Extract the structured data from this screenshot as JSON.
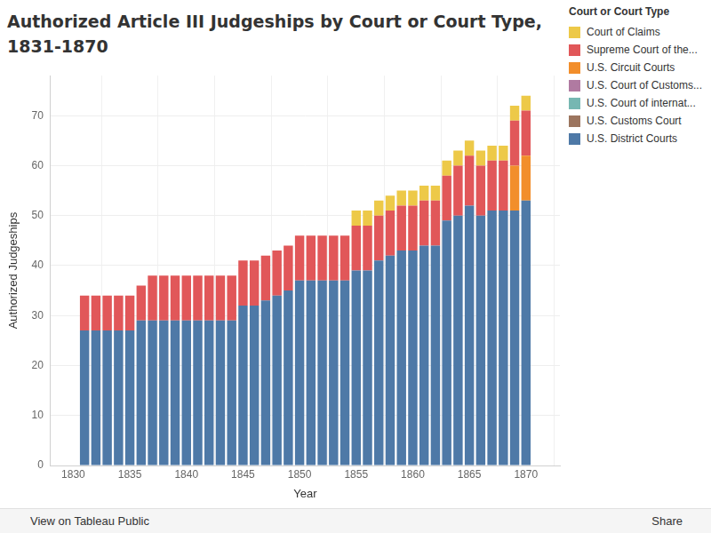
{
  "chart_data": {
    "type": "bar",
    "title": "Authorized Article III Judgeships by Court or Court Type, 1831-1870",
    "x_label": "Year",
    "y_label": "Authorized Judgeships",
    "legend_title": "Court or Court Type",
    "footer_left": "View on Tableau Public",
    "footer_right": "Share",
    "x": [
      1831,
      1832,
      1833,
      1834,
      1835,
      1836,
      1837,
      1838,
      1839,
      1840,
      1841,
      1842,
      1843,
      1844,
      1845,
      1846,
      1847,
      1848,
      1849,
      1850,
      1851,
      1852,
      1853,
      1854,
      1855,
      1856,
      1857,
      1858,
      1859,
      1860,
      1861,
      1862,
      1863,
      1864,
      1865,
      1866,
      1867,
      1868,
      1869,
      1870
    ],
    "series": [
      {
        "name": "Court of Claims",
        "color": "#edc948",
        "values": [
          0,
          0,
          0,
          0,
          0,
          0,
          0,
          0,
          0,
          0,
          0,
          0,
          0,
          0,
          0,
          0,
          0,
          0,
          0,
          0,
          0,
          0,
          0,
          0,
          3,
          3,
          3,
          3,
          3,
          3,
          3,
          3,
          3,
          3,
          3,
          3,
          3,
          3,
          3,
          3
        ]
      },
      {
        "name": "Supreme Court of the...",
        "color": "#e15759",
        "values": [
          7,
          7,
          7,
          7,
          7,
          7,
          9,
          9,
          9,
          9,
          9,
          9,
          9,
          9,
          9,
          9,
          9,
          9,
          9,
          9,
          9,
          9,
          9,
          9,
          9,
          9,
          9,
          9,
          9,
          9,
          9,
          9,
          9,
          10,
          10,
          10,
          10,
          10,
          9,
          9
        ]
      },
      {
        "name": "U.S. Circuit Courts",
        "color": "#f28e2b",
        "values": [
          0,
          0,
          0,
          0,
          0,
          0,
          0,
          0,
          0,
          0,
          0,
          0,
          0,
          0,
          0,
          0,
          0,
          0,
          0,
          0,
          0,
          0,
          0,
          0,
          0,
          0,
          0,
          0,
          0,
          0,
          0,
          0,
          0,
          0,
          0,
          0,
          0,
          0,
          9,
          9
        ]
      },
      {
        "name": "U.S. Court of Customs...",
        "color": "#b07aa1",
        "values": [
          0,
          0,
          0,
          0,
          0,
          0,
          0,
          0,
          0,
          0,
          0,
          0,
          0,
          0,
          0,
          0,
          0,
          0,
          0,
          0,
          0,
          0,
          0,
          0,
          0,
          0,
          0,
          0,
          0,
          0,
          0,
          0,
          0,
          0,
          0,
          0,
          0,
          0,
          0,
          0
        ]
      },
      {
        "name": "U.S. Court of internat...",
        "color": "#76b7b2",
        "values": [
          0,
          0,
          0,
          0,
          0,
          0,
          0,
          0,
          0,
          0,
          0,
          0,
          0,
          0,
          0,
          0,
          0,
          0,
          0,
          0,
          0,
          0,
          0,
          0,
          0,
          0,
          0,
          0,
          0,
          0,
          0,
          0,
          0,
          0,
          0,
          0,
          0,
          0,
          0,
          0
        ]
      },
      {
        "name": "U.S. Customs Court",
        "color": "#9c755f",
        "values": [
          0,
          0,
          0,
          0,
          0,
          0,
          0,
          0,
          0,
          0,
          0,
          0,
          0,
          0,
          0,
          0,
          0,
          0,
          0,
          0,
          0,
          0,
          0,
          0,
          0,
          0,
          0,
          0,
          0,
          0,
          0,
          0,
          0,
          0,
          0,
          0,
          0,
          0,
          0,
          0
        ]
      },
      {
        "name": "U.S. District Courts",
        "color": "#4e79a7",
        "values": [
          27,
          27,
          27,
          27,
          27,
          29,
          29,
          29,
          29,
          29,
          29,
          29,
          29,
          29,
          32,
          32,
          33,
          34,
          35,
          37,
          37,
          37,
          37,
          37,
          39,
          39,
          41,
          42,
          43,
          43,
          44,
          44,
          49,
          50,
          52,
          50,
          51,
          51,
          51,
          53
        ]
      }
    ],
    "xlim": [
      1828,
      1873
    ],
    "xticks": [
      1830,
      1835,
      1840,
      1845,
      1850,
      1855,
      1860,
      1865,
      1870
    ],
    "ylim": [
      0,
      78
    ],
    "yticks": [
      0,
      10,
      20,
      30,
      40,
      50,
      60,
      70
    ],
    "stacked": true,
    "grid": true,
    "legend": "right"
  }
}
